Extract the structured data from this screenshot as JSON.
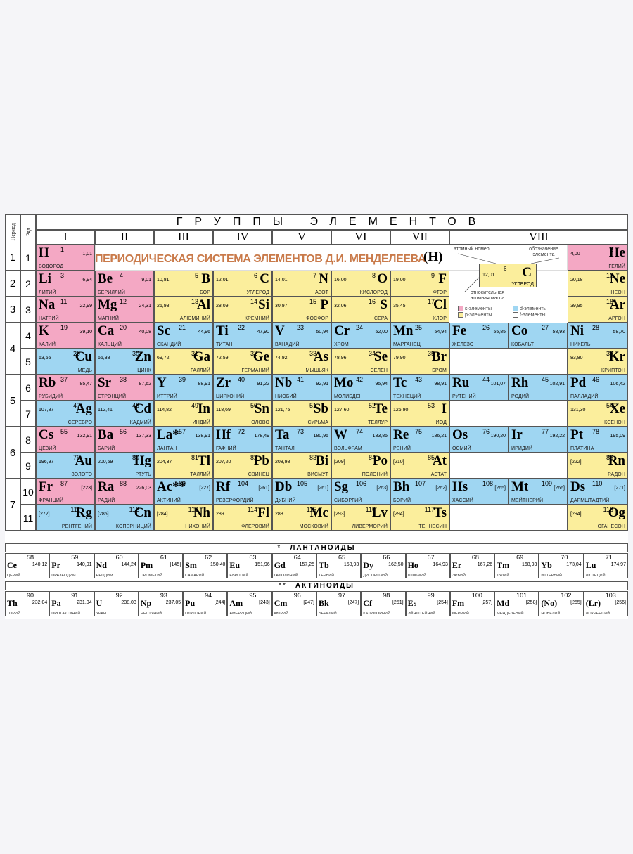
{
  "header": {
    "period_label": "Период",
    "row_label": "Ряд",
    "groups_title": "ГРУППЫ ЭЛЕМЕНТОВ",
    "groups": [
      "I",
      "II",
      "III",
      "IV",
      "V",
      "VI",
      "VII",
      "VIII"
    ]
  },
  "periods": [
    "1",
    "2",
    "3",
    "4",
    "5",
    "6",
    "7"
  ],
  "rows": [
    "1",
    "2",
    "3",
    "4",
    "5",
    "6",
    "7",
    "8",
    "9",
    "10",
    "11"
  ],
  "table_title": "ПЕРИОДИЧЕСКАЯ СИСТЕМА ЭЛЕМЕНТОВ Д.И. МЕНДЕЛЕЕВА",
  "h_mark": "(H)",
  "legend": {
    "atomic_number_caption": "атомный номер",
    "symbol_caption": "обозначение элемента",
    "mass_caption": "относительная атомная масса",
    "example": {
      "symbol": "C",
      "number": "6",
      "mass": "12,01",
      "name": "УГЛЕРОД"
    },
    "keys": [
      {
        "label": "s-элементы",
        "color": "#f4a8c4"
      },
      {
        "label": "d-элементы",
        "color": "#9fd6f2"
      },
      {
        "label": "p-элементы",
        "color": "#fbee9c"
      },
      {
        "label": "f-элементы",
        "color": "#ffffff"
      }
    ]
  },
  "elements": [
    {
      "sym": "H",
      "num": "1",
      "mass": "1,01",
      "name": "ВОДОРОД",
      "type": "s",
      "side": "L",
      "row": 0,
      "col": 0
    },
    {
      "sym": "He",
      "num": "2",
      "mass": "4,00",
      "name": "ГЕЛИЙ",
      "type": "s",
      "side": "R",
      "row": 0,
      "col": 8
    },
    {
      "sym": "Li",
      "num": "3",
      "mass": "6,94",
      "name": "ЛИТИЙ",
      "type": "s",
      "side": "L",
      "row": 1,
      "col": 0
    },
    {
      "sym": "Be",
      "num": "4",
      "mass": "9,01",
      "name": "БЕРИЛЛИЙ",
      "type": "s",
      "side": "L",
      "row": 1,
      "col": 1
    },
    {
      "sym": "B",
      "num": "5",
      "mass": "10,81",
      "name": "БОР",
      "type": "p",
      "side": "R",
      "row": 1,
      "col": 2
    },
    {
      "sym": "C",
      "num": "6",
      "mass": "12,01",
      "name": "УГЛЕРОД",
      "type": "p",
      "side": "R",
      "row": 1,
      "col": 3
    },
    {
      "sym": "N",
      "num": "7",
      "mass": "14,01",
      "name": "АЗОТ",
      "type": "p",
      "side": "R",
      "row": 1,
      "col": 4
    },
    {
      "sym": "O",
      "num": "8",
      "mass": "16,00",
      "name": "КИСЛОРОД",
      "type": "p",
      "side": "R",
      "row": 1,
      "col": 5
    },
    {
      "sym": "F",
      "num": "9",
      "mass": "19,00",
      "name": "ФТОР",
      "type": "p",
      "side": "R",
      "row": 1,
      "col": 6
    },
    {
      "sym": "Ne",
      "num": "10",
      "mass": "20,18",
      "name": "НЕОН",
      "type": "p",
      "side": "R",
      "row": 1,
      "col": 8
    },
    {
      "sym": "Na",
      "num": "11",
      "mass": "22,99",
      "name": "НАТРИЙ",
      "type": "s",
      "side": "L",
      "row": 2,
      "col": 0
    },
    {
      "sym": "Mg",
      "num": "12",
      "mass": "24,31",
      "name": "МАГНИЙ",
      "type": "s",
      "side": "L",
      "row": 2,
      "col": 1
    },
    {
      "sym": "Al",
      "num": "13",
      "mass": "26,98",
      "name": "АЛЮМИНИЙ",
      "type": "p",
      "side": "R",
      "row": 2,
      "col": 2
    },
    {
      "sym": "Si",
      "num": "14",
      "mass": "28,09",
      "name": "КРЕМНИЙ",
      "type": "p",
      "side": "R",
      "row": 2,
      "col": 3
    },
    {
      "sym": "P",
      "num": "15",
      "mass": "30,97",
      "name": "ФОСФОР",
      "type": "p",
      "side": "R",
      "row": 2,
      "col": 4
    },
    {
      "sym": "S",
      "num": "16",
      "mass": "32,06",
      "name": "СЕРА",
      "type": "p",
      "side": "R",
      "row": 2,
      "col": 5
    },
    {
      "sym": "Cl",
      "num": "17",
      "mass": "35,45",
      "name": "ХЛОР",
      "type": "p",
      "side": "R",
      "row": 2,
      "col": 6
    },
    {
      "sym": "Ar",
      "num": "18",
      "mass": "39,95",
      "name": "АРГОН",
      "type": "p",
      "side": "R",
      "row": 2,
      "col": 8
    },
    {
      "sym": "K",
      "num": "19",
      "mass": "39,10",
      "name": "КАЛИЙ",
      "type": "s",
      "side": "L",
      "row": 3,
      "col": 0
    },
    {
      "sym": "Ca",
      "num": "20",
      "mass": "40,08",
      "name": "КАЛЬЦИЙ",
      "type": "s",
      "side": "L",
      "row": 3,
      "col": 1
    },
    {
      "sym": "Sc",
      "num": "21",
      "mass": "44,96",
      "name": "СКАНДИЙ",
      "type": "d",
      "side": "L",
      "row": 3,
      "col": 2
    },
    {
      "sym": "Ti",
      "num": "22",
      "mass": "47,90",
      "name": "ТИТАН",
      "type": "d",
      "side": "L",
      "row": 3,
      "col": 3
    },
    {
      "sym": "V",
      "num": "23",
      "mass": "50,94",
      "name": "ВАНАДИЙ",
      "type": "d",
      "side": "L",
      "row": 3,
      "col": 4
    },
    {
      "sym": "Cr",
      "num": "24",
      "mass": "52,00",
      "name": "ХРОМ",
      "type": "d",
      "side": "L",
      "row": 3,
      "col": 5
    },
    {
      "sym": "Mn",
      "num": "25",
      "mass": "54,94",
      "name": "МАРГАНЕЦ",
      "type": "d",
      "side": "L",
      "row": 3,
      "col": 6
    },
    {
      "sym": "Fe",
      "num": "26",
      "mass": "55,85",
      "name": "ЖЕЛЕЗО",
      "type": "d",
      "side": "W",
      "row": 3,
      "col": 7,
      "sub": 0
    },
    {
      "sym": "Co",
      "num": "27",
      "mass": "58,93",
      "name": "КОБАЛЬТ",
      "type": "d",
      "side": "W",
      "row": 3,
      "col": 7,
      "sub": 1
    },
    {
      "sym": "Ni",
      "num": "28",
      "mass": "58,70",
      "name": "НИКЕЛЬ",
      "type": "d",
      "side": "L",
      "row": 3,
      "col": 8
    },
    {
      "sym": "Cu",
      "num": "29",
      "mass": "63,55",
      "name": "МЕДЬ",
      "type": "d",
      "side": "R",
      "row": 4,
      "col": 0
    },
    {
      "sym": "Zn",
      "num": "30",
      "mass": "65,38",
      "name": "ЦИНК",
      "type": "d",
      "side": "R",
      "row": 4,
      "col": 1
    },
    {
      "sym": "Ga",
      "num": "31",
      "mass": "69,72",
      "name": "ГАЛЛИЙ",
      "type": "p",
      "side": "R",
      "row": 4,
      "col": 2
    },
    {
      "sym": "Ge",
      "num": "32",
      "mass": "72,59",
      "name": "ГЕРМАНИЙ",
      "type": "p",
      "side": "R",
      "row": 4,
      "col": 3
    },
    {
      "sym": "As",
      "num": "33",
      "mass": "74,92",
      "name": "МЫШЬЯК",
      "type": "p",
      "side": "R",
      "row": 4,
      "col": 4
    },
    {
      "sym": "Se",
      "num": "34",
      "mass": "78,96",
      "name": "СЕЛЕН",
      "type": "p",
      "side": "R",
      "row": 4,
      "col": 5
    },
    {
      "sym": "Br",
      "num": "35",
      "mass": "79,90",
      "name": "БРОМ",
      "type": "p",
      "side": "R",
      "row": 4,
      "col": 6
    },
    {
      "sym": "Kr",
      "num": "36",
      "mass": "83,80",
      "name": "КРИПТОН",
      "type": "p",
      "side": "R",
      "row": 4,
      "col": 8
    },
    {
      "sym": "Rb",
      "num": "37",
      "mass": "85,47",
      "name": "РУБИДИЙ",
      "type": "s",
      "side": "L",
      "row": 5,
      "col": 0
    },
    {
      "sym": "Sr",
      "num": "38",
      "mass": "87,62",
      "name": "СТРОНЦИЙ",
      "type": "s",
      "side": "L",
      "row": 5,
      "col": 1
    },
    {
      "sym": "Y",
      "num": "39",
      "mass": "88,91",
      "name": "ИТТРИЙ",
      "type": "d",
      "side": "L",
      "row": 5,
      "col": 2
    },
    {
      "sym": "Zr",
      "num": "40",
      "mass": "91,22",
      "name": "ЦИРКОНИЙ",
      "type": "d",
      "side": "L",
      "row": 5,
      "col": 3
    },
    {
      "sym": "Nb",
      "num": "41",
      "mass": "92,91",
      "name": "НИОБИЙ",
      "type": "d",
      "side": "L",
      "row": 5,
      "col": 4
    },
    {
      "sym": "Mo",
      "num": "42",
      "mass": "95,94",
      "name": "МОЛИБДЕН",
      "type": "d",
      "side": "L",
      "row": 5,
      "col": 5
    },
    {
      "sym": "Tc",
      "num": "43",
      "mass": "98,91",
      "name": "ТЕХНЕЦИЙ",
      "type": "d",
      "side": "L",
      "row": 5,
      "col": 6
    },
    {
      "sym": "Ru",
      "num": "44",
      "mass": "101,07",
      "name": "РУТЕНИЙ",
      "type": "d",
      "side": "W",
      "row": 5,
      "col": 7,
      "sub": 0
    },
    {
      "sym": "Rh",
      "num": "45",
      "mass": "102,91",
      "name": "РОДИЙ",
      "type": "d",
      "side": "W",
      "row": 5,
      "col": 7,
      "sub": 1
    },
    {
      "sym": "Pd",
      "num": "46",
      "mass": "106,42",
      "name": "ПАЛЛАДИЙ",
      "type": "d",
      "side": "L",
      "row": 5,
      "col": 8
    },
    {
      "sym": "Ag",
      "num": "47",
      "mass": "107,87",
      "name": "СЕРЕБРО",
      "type": "d",
      "side": "R",
      "row": 6,
      "col": 0
    },
    {
      "sym": "Cd",
      "num": "48",
      "mass": "112,41",
      "name": "КАДМИЙ",
      "type": "d",
      "side": "R",
      "row": 6,
      "col": 1
    },
    {
      "sym": "In",
      "num": "49",
      "mass": "114,82",
      "name": "ИНДИЙ",
      "type": "p",
      "side": "R",
      "row": 6,
      "col": 2
    },
    {
      "sym": "Sn",
      "num": "50",
      "mass": "118,69",
      "name": "ОЛОВО",
      "type": "p",
      "side": "R",
      "row": 6,
      "col": 3
    },
    {
      "sym": "Sb",
      "num": "51",
      "mass": "121,75",
      "name": "СУРЬМА",
      "type": "p",
      "side": "R",
      "row": 6,
      "col": 4
    },
    {
      "sym": "Te",
      "num": "52",
      "mass": "127,60",
      "name": "ТЕЛЛУР",
      "type": "p",
      "side": "R",
      "row": 6,
      "col": 5
    },
    {
      "sym": "I",
      "num": "53",
      "mass": "126,90",
      "name": "ИОД",
      "type": "p",
      "side": "R",
      "row": 6,
      "col": 6
    },
    {
      "sym": "Xe",
      "num": "54",
      "mass": "131,30",
      "name": "КСЕНОН",
      "type": "p",
      "side": "R",
      "row": 6,
      "col": 8
    },
    {
      "sym": "Cs",
      "num": "55",
      "mass": "132,91",
      "name": "ЦЕЗИЙ",
      "type": "s",
      "side": "L",
      "row": 7,
      "col": 0
    },
    {
      "sym": "Ba",
      "num": "56",
      "mass": "137,33",
      "name": "БАРИЙ",
      "type": "s",
      "side": "L",
      "row": 7,
      "col": 1
    },
    {
      "sym": "La*",
      "num": "57",
      "mass": "138,91",
      "name": "ЛАНТАН",
      "type": "d",
      "side": "L",
      "row": 7,
      "col": 2
    },
    {
      "sym": "Hf",
      "num": "72",
      "mass": "178,49",
      "name": "ГАФНИЙ",
      "type": "d",
      "side": "L",
      "row": 7,
      "col": 3
    },
    {
      "sym": "Ta",
      "num": "73",
      "mass": "180,95",
      "name": "ТАНТАЛ",
      "type": "d",
      "side": "L",
      "row": 7,
      "col": 4
    },
    {
      "sym": "W",
      "num": "74",
      "mass": "183,85",
      "name": "ВОЛЬФРАМ",
      "type": "d",
      "side": "L",
      "row": 7,
      "col": 5
    },
    {
      "sym": "Re",
      "num": "75",
      "mass": "186,21",
      "name": "РЕНИЙ",
      "type": "d",
      "side": "L",
      "row": 7,
      "col": 6
    },
    {
      "sym": "Os",
      "num": "76",
      "mass": "190,20",
      "name": "ОСМИЙ",
      "type": "d",
      "side": "W",
      "row": 7,
      "col": 7,
      "sub": 0
    },
    {
      "sym": "Ir",
      "num": "77",
      "mass": "192,22",
      "name": "ИРИДИЙ",
      "type": "d",
      "side": "W",
      "row": 7,
      "col": 7,
      "sub": 1
    },
    {
      "sym": "Pt",
      "num": "78",
      "mass": "195,09",
      "name": "ПЛАТИНА",
      "type": "d",
      "side": "L",
      "row": 7,
      "col": 8
    },
    {
      "sym": "Au",
      "num": "79",
      "mass": "196,97",
      "name": "ЗОЛОТО",
      "type": "d",
      "side": "R",
      "row": 8,
      "col": 0
    },
    {
      "sym": "Hg",
      "num": "80",
      "mass": "200,59",
      "name": "РТУТЬ",
      "type": "d",
      "side": "R",
      "row": 8,
      "col": 1
    },
    {
      "sym": "Tl",
      "num": "81",
      "mass": "204,37",
      "name": "ТАЛЛИЙ",
      "type": "p",
      "side": "R",
      "row": 8,
      "col": 2
    },
    {
      "sym": "Pb",
      "num": "82",
      "mass": "207,20",
      "name": "СВИНЕЦ",
      "type": "p",
      "side": "R",
      "row": 8,
      "col": 3
    },
    {
      "sym": "Bi",
      "num": "83",
      "mass": "208,98",
      "name": "ВИСМУТ",
      "type": "p",
      "side": "R",
      "row": 8,
      "col": 4
    },
    {
      "sym": "Po",
      "num": "84",
      "mass": "[209]",
      "name": "ПОЛОНИЙ",
      "type": "p",
      "side": "R",
      "row": 8,
      "col": 5
    },
    {
      "sym": "At",
      "num": "85",
      "mass": "[210]",
      "name": "АСТАТ",
      "type": "p",
      "side": "R",
      "row": 8,
      "col": 6
    },
    {
      "sym": "Rn",
      "num": "86",
      "mass": "[222]",
      "name": "РАДОН",
      "type": "p",
      "side": "R",
      "row": 8,
      "col": 8
    },
    {
      "sym": "Fr",
      "num": "87",
      "mass": "[223]",
      "name": "ФРАНЦИЙ",
      "type": "s",
      "side": "L",
      "row": 9,
      "col": 0
    },
    {
      "sym": "Ra",
      "num": "88",
      "mass": "226,03",
      "name": "РАДИЙ",
      "type": "s",
      "side": "L",
      "row": 9,
      "col": 1
    },
    {
      "sym": "Ac**",
      "num": "89",
      "mass": "[227]",
      "name": "АКТИНИЙ",
      "type": "d",
      "side": "L",
      "row": 9,
      "col": 2
    },
    {
      "sym": "Rf",
      "num": "104",
      "mass": "[261]",
      "name": "РЕЗЕРФОРДИЙ",
      "type": "d",
      "side": "L",
      "row": 9,
      "col": 3
    },
    {
      "sym": "Db",
      "num": "105",
      "mass": "[261]",
      "name": "ДУБНИЙ",
      "type": "d",
      "side": "L",
      "row": 9,
      "col": 4
    },
    {
      "sym": "Sg",
      "num": "106",
      "mass": "[263]",
      "name": "СИБОРГИЙ",
      "type": "d",
      "side": "L",
      "row": 9,
      "col": 5
    },
    {
      "sym": "Bh",
      "num": "107",
      "mass": "[262]",
      "name": "БОРИЙ",
      "type": "d",
      "side": "L",
      "row": 9,
      "col": 6
    },
    {
      "sym": "Hs",
      "num": "108",
      "mass": "[265]",
      "name": "ХАССИЙ",
      "type": "d",
      "side": "W",
      "row": 9,
      "col": 7,
      "sub": 0
    },
    {
      "sym": "Mt",
      "num": "109",
      "mass": "[266]",
      "name": "МЕЙТНЕРИЙ",
      "type": "d",
      "side": "W",
      "row": 9,
      "col": 7,
      "sub": 1
    },
    {
      "sym": "Ds",
      "num": "110",
      "mass": "[271]",
      "name": "ДАРМШТАДТИЙ",
      "type": "d",
      "side": "L",
      "row": 9,
      "col": 8
    },
    {
      "sym": "Rg",
      "num": "111",
      "mass": "[272]",
      "name": "РЕНТГЕНИЙ",
      "type": "d",
      "side": "R",
      "row": 10,
      "col": 0
    },
    {
      "sym": "Cn",
      "num": "112",
      "mass": "[285]",
      "name": "КОПЕРНИЦИЙ",
      "type": "d",
      "side": "R",
      "row": 10,
      "col": 1
    },
    {
      "sym": "Nh",
      "num": "113",
      "mass": "[284]",
      "name": "НИХОНИЙ",
      "type": "p",
      "side": "R",
      "row": 10,
      "col": 2
    },
    {
      "sym": "Fl",
      "num": "114",
      "mass": "289",
      "name": "ФЛЕРОВИЙ",
      "type": "p",
      "side": "R",
      "row": 10,
      "col": 3
    },
    {
      "sym": "Mc",
      "num": "115",
      "mass": "288",
      "name": "МОСКОВИЙ",
      "type": "p",
      "side": "R",
      "row": 10,
      "col": 4
    },
    {
      "sym": "Lv",
      "num": "116",
      "mass": "[293]",
      "name": "ЛИВЕРМОРИЙ",
      "type": "p",
      "side": "R",
      "row": 10,
      "col": 5
    },
    {
      "sym": "Ts",
      "num": "117",
      "mass": "[294]",
      "name": "ТЕННЕСИН",
      "type": "p",
      "side": "R",
      "row": 10,
      "col": 6
    },
    {
      "sym": "Og",
      "num": "118",
      "mass": "[294]",
      "name": "ОГАНЕСОН",
      "type": "p",
      "side": "R",
      "row": 10,
      "col": 8
    }
  ],
  "lanthanides": {
    "title": "ЛАНТАНОИДЫ",
    "marker": "*",
    "items": [
      {
        "sym": "Ce",
        "num": "58",
        "mass": "140,12",
        "name": "ЦЕРИЙ"
      },
      {
        "sym": "Pr",
        "num": "59",
        "mass": "140,91",
        "name": "ПРАЗЕОДИМ"
      },
      {
        "sym": "Nd",
        "num": "60",
        "mass": "144,24",
        "name": "НЕОДИМ"
      },
      {
        "sym": "Pm",
        "num": "61",
        "mass": "[145]",
        "name": "ПРОМЕТИЙ"
      },
      {
        "sym": "Sm",
        "num": "62",
        "mass": "150,40",
        "name": "САМАРИЙ"
      },
      {
        "sym": "Eu",
        "num": "63",
        "mass": "151,96",
        "name": "ЕВРОПИЙ"
      },
      {
        "sym": "Gd",
        "num": "64",
        "mass": "157,25",
        "name": "ГАДОЛИНИЙ"
      },
      {
        "sym": "Tb",
        "num": "65",
        "mass": "158,93",
        "name": "ТЕРБИЙ"
      },
      {
        "sym": "Dy",
        "num": "66",
        "mass": "162,50",
        "name": "ДИСПРОЗИЙ"
      },
      {
        "sym": "Ho",
        "num": "67",
        "mass": "164,93",
        "name": "ГОЛЬМИЙ"
      },
      {
        "sym": "Er",
        "num": "68",
        "mass": "167,26",
        "name": "ЭРБИЙ"
      },
      {
        "sym": "Tm",
        "num": "69",
        "mass": "168,93",
        "name": "ТУЛИЙ"
      },
      {
        "sym": "Yb",
        "num": "70",
        "mass": "173,04",
        "name": "ИТТЕРБИЙ"
      },
      {
        "sym": "Lu",
        "num": "71",
        "mass": "174,97",
        "name": "ЛЮТЕЦИЙ"
      }
    ]
  },
  "actinides": {
    "title": "АКТИНОИДЫ",
    "marker": "**",
    "items": [
      {
        "sym": "Th",
        "num": "90",
        "mass": "232,04",
        "name": "ТОРИЙ"
      },
      {
        "sym": "Pa",
        "num": "91",
        "mass": "231,04",
        "name": "ПРОТАКТИНИЙ"
      },
      {
        "sym": "U",
        "num": "92",
        "mass": "238,03",
        "name": "УРАН"
      },
      {
        "sym": "Np",
        "num": "93",
        "mass": "237,05",
        "name": "НЕПТУНИЙ"
      },
      {
        "sym": "Pu",
        "num": "94",
        "mass": "[244]",
        "name": "ПЛУТОНИЙ"
      },
      {
        "sym": "Am",
        "num": "95",
        "mass": "[243]",
        "name": "АМЕРИЦИЙ"
      },
      {
        "sym": "Cm",
        "num": "96",
        "mass": "[247]",
        "name": "КЮРИЙ"
      },
      {
        "sym": "Bk",
        "num": "97",
        "mass": "[247]",
        "name": "БЕРКЛИЙ"
      },
      {
        "sym": "Cf",
        "num": "98",
        "mass": "[251]",
        "name": "КАЛИФОРНИЙ"
      },
      {
        "sym": "Es",
        "num": "99",
        "mass": "[254]",
        "name": "ЭЙНШТЕЙНИЙ"
      },
      {
        "sym": "Fm",
        "num": "100",
        "mass": "[257]",
        "name": "ФЕРМИЙ"
      },
      {
        "sym": "Md",
        "num": "101",
        "mass": "[258]",
        "name": "МЕНДЕЛЕВИЙ"
      },
      {
        "sym": "(No)",
        "num": "102",
        "mass": "[255]",
        "name": "НОБЕЛИЙ"
      },
      {
        "sym": "(Lr)",
        "num": "103",
        "mass": "[256]",
        "name": "ЛОУРЕНСИЙ"
      }
    ]
  }
}
